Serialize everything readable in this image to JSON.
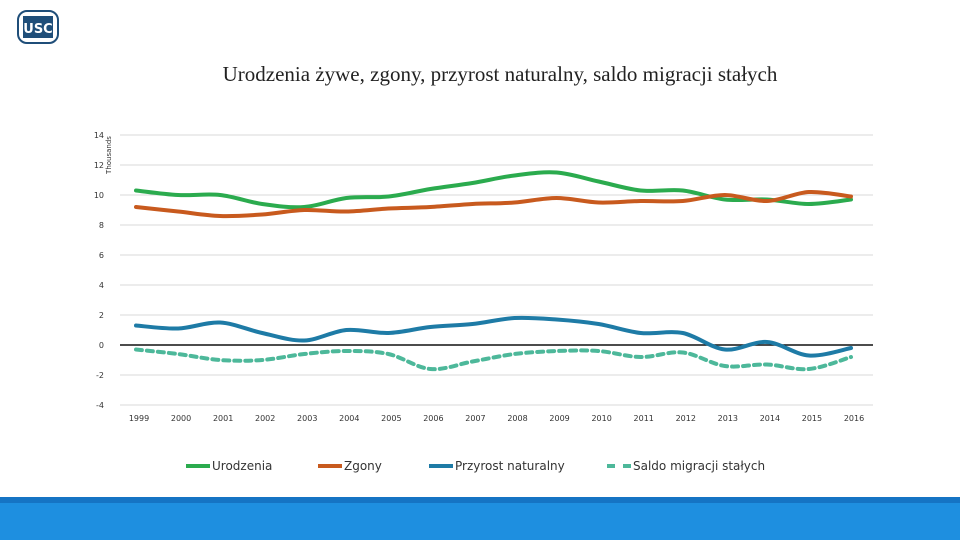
{
  "logo": {
    "text": "USC"
  },
  "chart_data": {
    "type": "line",
    "title": "Urodzenia żywe, zgony, przyrost naturalny, saldo migracji stałych",
    "xlabel": "",
    "ylabel": "Thousands",
    "ylim": [
      -4,
      14
    ],
    "yticks": [
      "14",
      "12",
      "10",
      "8",
      "6",
      "4",
      "2",
      "0",
      "-2",
      "-4"
    ],
    "grid": true,
    "legend_position": "bottom",
    "categories": [
      "1999",
      "2000",
      "2001",
      "2002",
      "2003",
      "2004",
      "2005",
      "2006",
      "2007",
      "2008",
      "2009",
      "2010",
      "2011",
      "2012",
      "2013",
      "2014",
      "2015",
      "2016"
    ],
    "series": [
      {
        "name": "Urodzenia",
        "color": "#2bab4e",
        "dashed": false,
        "values": [
          10.3,
          10.0,
          10.0,
          9.4,
          9.2,
          9.8,
          9.9,
          10.4,
          10.8,
          11.3,
          11.5,
          10.9,
          10.3,
          10.3,
          9.7,
          9.7,
          9.4,
          9.7
        ]
      },
      {
        "name": "Zgony",
        "color": "#c85a1e",
        "dashed": false,
        "values": [
          9.2,
          8.9,
          8.6,
          8.7,
          9.0,
          8.9,
          9.1,
          9.2,
          9.4,
          9.5,
          9.8,
          9.5,
          9.6,
          9.6,
          10.0,
          9.6,
          10.2,
          9.9
        ]
      },
      {
        "name": "Przyrost naturalny",
        "color": "#1e7ba6",
        "dashed": false,
        "values": [
          1.3,
          1.1,
          1.5,
          0.8,
          0.3,
          1.0,
          0.8,
          1.2,
          1.4,
          1.8,
          1.7,
          1.4,
          0.8,
          0.8,
          -0.3,
          0.2,
          -0.7,
          -0.2
        ]
      },
      {
        "name": "Saldo migracji stałych",
        "color": "#4db89a",
        "dashed": true,
        "values": [
          -0.3,
          -0.6,
          -1.0,
          -1.0,
          -0.6,
          -0.4,
          -0.6,
          -1.6,
          -1.1,
          -0.6,
          -0.4,
          -0.4,
          -0.8,
          -0.5,
          -1.4,
          -1.3,
          -1.6,
          -0.8
        ]
      }
    ]
  }
}
